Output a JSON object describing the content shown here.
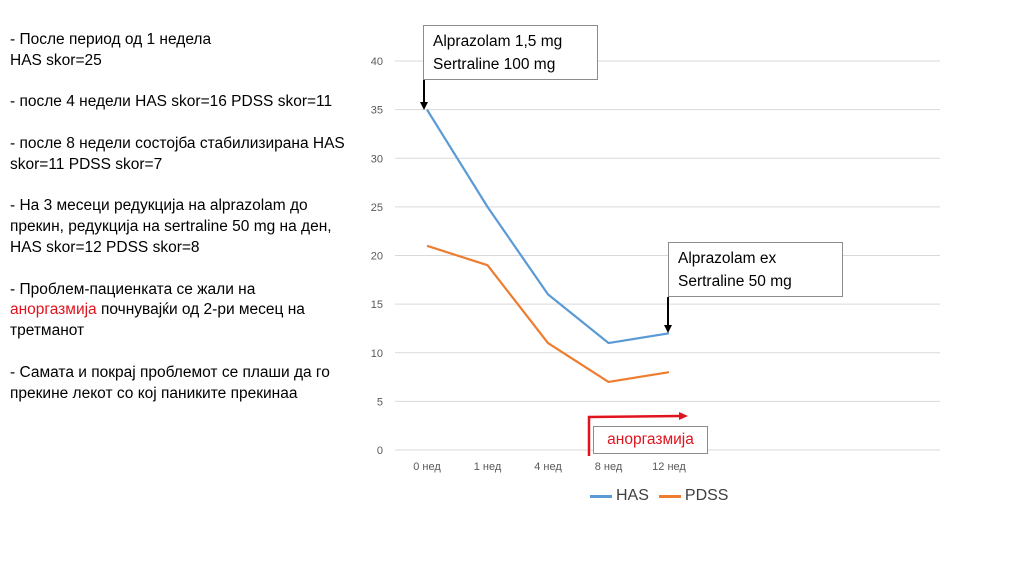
{
  "notes": {
    "p1": "- После период од  1 недела\nHAS skor=25",
    "p2": "- после 4 недели HAS skor=16  PDSS skor=11",
    "p3": "- после 8 недели состојба стабилизирана HAS skor=11  PDSS skor=7",
    "p4": "- На 3 месеци редукција на alprazolam до прекин, редукција на sertraline 50 mg на ден, HAS skor=12  PDSS skor=8",
    "p5_before": "- Проблем-пациенката  се жали на ",
    "p5_red": "аноргазмија",
    "p5_after": " почнувајќи од 2-ри месец на третманот",
    "p6": "- Самата и покрај проблемот се плаши да го прекине лекот со кој паниките прекинаа"
  },
  "annotations": {
    "start": {
      "line1": "Alprazolam 1,5 mg",
      "line2": "Sertraline 100 mg"
    },
    "end": {
      "line1": "Alprazolam ex",
      "line2": "Sertraline 50 mg"
    },
    "anorgasmia": "аноргазмија"
  },
  "colors": {
    "has": "#5b9bd5",
    "pdss": "#ed7d31",
    "highlight": "#e0141e",
    "gridline": "#d9d9d9",
    "axis_text": "#595959"
  },
  "chart_data": {
    "type": "line",
    "categories": [
      "0 нед",
      "1 нед",
      "4 нед",
      "8 нед",
      "12 нед"
    ],
    "series": [
      {
        "name": "HAS",
        "values": [
          35,
          25,
          16,
          11,
          12
        ]
      },
      {
        "name": "PDSS",
        "values": [
          21,
          19,
          11,
          7,
          8
        ]
      }
    ],
    "ylim": [
      0,
      40
    ],
    "yticks": [
      0,
      5,
      10,
      15,
      20,
      25,
      30,
      35,
      40
    ],
    "grid": true,
    "legend_position": "bottom"
  }
}
